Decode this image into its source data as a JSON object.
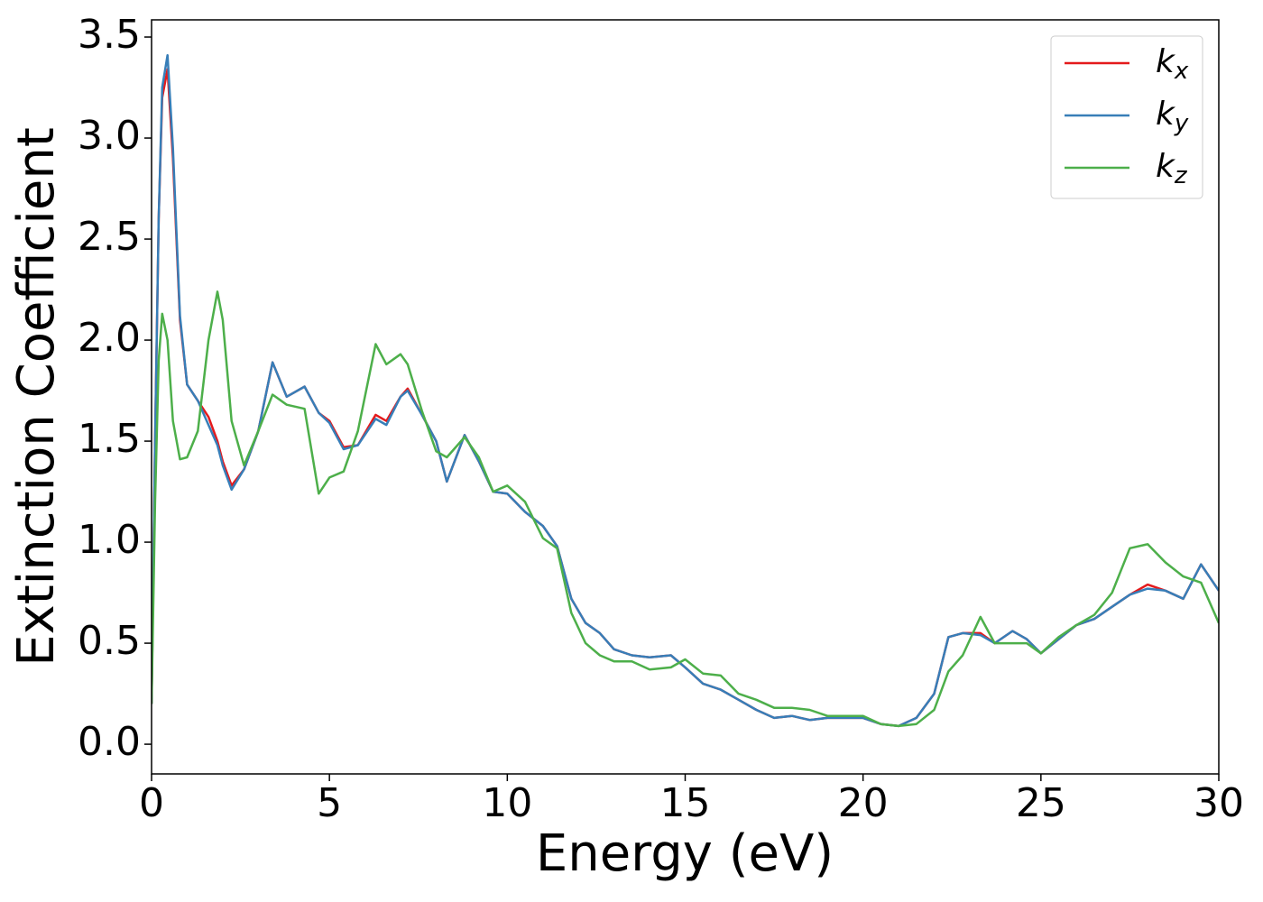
{
  "chart_data": {
    "type": "line",
    "xlabel": "Energy (eV)",
    "ylabel": "Extinction Coefficient",
    "x": [
      0,
      0.1,
      0.2,
      0.3,
      0.45,
      0.6,
      0.8,
      1.0,
      1.3,
      1.6,
      1.85,
      2.0,
      2.25,
      2.6,
      3.0,
      3.4,
      3.8,
      4.3,
      4.7,
      5.0,
      5.4,
      5.8,
      6.3,
      6.6,
      7.0,
      7.2,
      7.6,
      8.0,
      8.3,
      8.8,
      9.2,
      9.6,
      10.0,
      10.5,
      11.0,
      11.4,
      11.8,
      12.2,
      12.6,
      13.0,
      13.5,
      14.0,
      14.6,
      15.0,
      15.5,
      16.0,
      16.5,
      17.0,
      17.5,
      18.0,
      18.5,
      19.0,
      19.5,
      20.0,
      20.5,
      21.0,
      21.5,
      22.0,
      22.4,
      22.8,
      23.3,
      23.7,
      24.2,
      24.6,
      25.0,
      25.5,
      26.0,
      26.5,
      27.0,
      27.5,
      28.0,
      28.5,
      29.0,
      29.5,
      30.0
    ],
    "series": [
      {
        "name": "kx",
        "color": "#e41a1c",
        "values": [
          0.2,
          1.5,
          2.6,
          3.2,
          3.34,
          2.9,
          2.1,
          1.78,
          1.7,
          1.62,
          1.5,
          1.4,
          1.28,
          1.36,
          1.55,
          1.89,
          1.72,
          1.77,
          1.64,
          1.6,
          1.47,
          1.48,
          1.63,
          1.6,
          1.72,
          1.76,
          1.63,
          1.5,
          1.3,
          1.53,
          1.4,
          1.25,
          1.24,
          1.15,
          1.08,
          0.98,
          0.72,
          0.6,
          0.55,
          0.47,
          0.44,
          0.43,
          0.44,
          0.38,
          0.3,
          0.27,
          0.22,
          0.17,
          0.13,
          0.14,
          0.12,
          0.13,
          0.13,
          0.13,
          0.1,
          0.09,
          0.13,
          0.25,
          0.53,
          0.55,
          0.55,
          0.5,
          0.56,
          0.52,
          0.45,
          0.52,
          0.59,
          0.62,
          0.68,
          0.74,
          0.79,
          0.76,
          0.72,
          0.89,
          0.76
        ]
      },
      {
        "name": "ky",
        "color": "#377eb8",
        "values": [
          0.2,
          1.5,
          2.6,
          3.25,
          3.41,
          2.95,
          2.12,
          1.78,
          1.7,
          1.58,
          1.48,
          1.38,
          1.26,
          1.36,
          1.55,
          1.89,
          1.72,
          1.77,
          1.64,
          1.59,
          1.46,
          1.48,
          1.61,
          1.58,
          1.72,
          1.75,
          1.63,
          1.5,
          1.3,
          1.53,
          1.4,
          1.25,
          1.24,
          1.15,
          1.08,
          0.98,
          0.72,
          0.6,
          0.55,
          0.47,
          0.44,
          0.43,
          0.44,
          0.38,
          0.3,
          0.27,
          0.22,
          0.17,
          0.13,
          0.14,
          0.12,
          0.13,
          0.13,
          0.13,
          0.1,
          0.09,
          0.13,
          0.25,
          0.53,
          0.55,
          0.54,
          0.5,
          0.56,
          0.52,
          0.45,
          0.52,
          0.59,
          0.62,
          0.68,
          0.74,
          0.77,
          0.76,
          0.72,
          0.89,
          0.76
        ]
      },
      {
        "name": "kz",
        "color": "#4daf4a",
        "values": [
          0.2,
          1.2,
          1.9,
          2.13,
          2.0,
          1.6,
          1.41,
          1.42,
          1.55,
          2.0,
          2.24,
          2.1,
          1.6,
          1.38,
          1.55,
          1.73,
          1.68,
          1.66,
          1.24,
          1.32,
          1.35,
          1.55,
          1.98,
          1.88,
          1.93,
          1.88,
          1.65,
          1.45,
          1.42,
          1.52,
          1.42,
          1.25,
          1.28,
          1.2,
          1.02,
          0.97,
          0.65,
          0.5,
          0.44,
          0.41,
          0.41,
          0.37,
          0.38,
          0.42,
          0.35,
          0.34,
          0.25,
          0.22,
          0.18,
          0.18,
          0.17,
          0.14,
          0.14,
          0.14,
          0.1,
          0.09,
          0.1,
          0.17,
          0.36,
          0.44,
          0.63,
          0.5,
          0.5,
          0.5,
          0.45,
          0.53,
          0.59,
          0.64,
          0.75,
          0.97,
          0.99,
          0.9,
          0.83,
          0.8,
          0.6
        ]
      }
    ],
    "xlim": [
      0,
      30
    ],
    "xticks": [
      0,
      5,
      10,
      15,
      20,
      25,
      30
    ],
    "ylim": [
      -0.147,
      3.585
    ],
    "yticks": [
      {
        "value": 0,
        "label": "0.0"
      },
      0.5,
      {
        "value": 1,
        "label": "1.0"
      },
      1.5,
      {
        "value": 2,
        "label": "2.0"
      },
      2.5,
      {
        "value": 3,
        "label": "3.0"
      },
      3.5
    ],
    "grid": false,
    "legend": "upper right"
  }
}
